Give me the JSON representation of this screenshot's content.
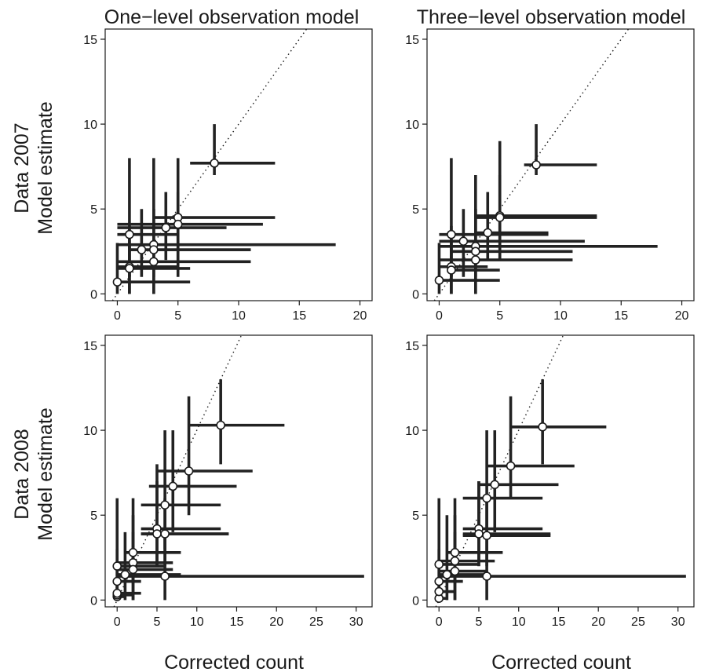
{
  "figure": {
    "column_titles": [
      "One−level observation model",
      "Three−level observation model"
    ],
    "row_labels": [
      {
        "line1": "Data 2007",
        "line2": "Model estimate"
      },
      {
        "line1": "Data 2008",
        "line2": "Model estimate"
      }
    ],
    "x_label": "Corrected count"
  },
  "chart_data": [
    {
      "type": "scatter",
      "panel": "One−level observation model / Data 2007",
      "xlim": [
        -1,
        21
      ],
      "ylim": [
        -0.4,
        15.6
      ],
      "xticks": [
        0,
        5,
        10,
        15,
        20
      ],
      "yticks": [
        0,
        5,
        10,
        15
      ],
      "reference_line": "y = x",
      "points": [
        {
          "x": 0,
          "y": 0.7,
          "xlo": 0,
          "xhi": 6,
          "ylo": 0,
          "yhi": 3
        },
        {
          "x": 1,
          "y": 3.5,
          "xlo": 0,
          "xhi": 5,
          "ylo": 1,
          "yhi": 8
        },
        {
          "x": 1,
          "y": 1.6,
          "xlo": 0,
          "xhi": 5,
          "ylo": 0,
          "yhi": 4
        },
        {
          "x": 1,
          "y": 1.5,
          "xlo": 0,
          "xhi": 6,
          "ylo": 0,
          "yhi": 3
        },
        {
          "x": 2,
          "y": 2.6,
          "xlo": 1,
          "xhi": 11,
          "ylo": 1,
          "yhi": 5
        },
        {
          "x": 3,
          "y": 2.9,
          "xlo": 0,
          "xhi": 18,
          "ylo": 1,
          "yhi": 8
        },
        {
          "x": 3,
          "y": 2.6,
          "xlo": 1,
          "xhi": 11,
          "ylo": 0,
          "yhi": 5
        },
        {
          "x": 3,
          "y": 1.9,
          "xlo": 0,
          "xhi": 11,
          "ylo": 0,
          "yhi": 5
        },
        {
          "x": 4,
          "y": 3.9,
          "xlo": 0,
          "xhi": 9,
          "ylo": 2,
          "yhi": 6
        },
        {
          "x": 5,
          "y": 4.5,
          "xlo": 3,
          "xhi": 13,
          "ylo": 2,
          "yhi": 8
        },
        {
          "x": 5,
          "y": 4.1,
          "xlo": 0,
          "xhi": 12,
          "ylo": 1,
          "yhi": 6
        },
        {
          "x": 8,
          "y": 7.7,
          "xlo": 6,
          "xhi": 13,
          "ylo": 7,
          "yhi": 10
        }
      ]
    },
    {
      "type": "scatter",
      "panel": "Three−level observation model / Data 2007",
      "xlim": [
        -1,
        21
      ],
      "ylim": [
        -0.4,
        15.6
      ],
      "xticks": [
        0,
        5,
        10,
        15,
        20
      ],
      "yticks": [
        0,
        5,
        10,
        15
      ],
      "reference_line": "y = x",
      "points": [
        {
          "x": 0,
          "y": 0.8,
          "xlo": 0,
          "xhi": 5,
          "ylo": 0,
          "yhi": 3
        },
        {
          "x": 1,
          "y": 3.5,
          "xlo": 0,
          "xhi": 9,
          "ylo": 1,
          "yhi": 8
        },
        {
          "x": 1,
          "y": 1.6,
          "xlo": 0,
          "xhi": 4,
          "ylo": 0,
          "yhi": 4
        },
        {
          "x": 1,
          "y": 1.4,
          "xlo": 1,
          "xhi": 5,
          "ylo": 0,
          "yhi": 3
        },
        {
          "x": 2,
          "y": 3.1,
          "xlo": 0,
          "xhi": 12,
          "ylo": 1,
          "yhi": 5
        },
        {
          "x": 3,
          "y": 2.8,
          "xlo": 0,
          "xhi": 18,
          "ylo": 1,
          "yhi": 7
        },
        {
          "x": 3,
          "y": 2.5,
          "xlo": 1,
          "xhi": 11,
          "ylo": 0,
          "yhi": 5
        },
        {
          "x": 3,
          "y": 2.0,
          "xlo": 0,
          "xhi": 11,
          "ylo": 0,
          "yhi": 5
        },
        {
          "x": 4,
          "y": 3.6,
          "xlo": 3,
          "xhi": 9,
          "ylo": 2,
          "yhi": 6
        },
        {
          "x": 5,
          "y": 4.6,
          "xlo": 3,
          "xhi": 13,
          "ylo": 2,
          "yhi": 9
        },
        {
          "x": 5,
          "y": 4.5,
          "xlo": 3,
          "xhi": 13,
          "ylo": 2,
          "yhi": 7
        },
        {
          "x": 8,
          "y": 7.6,
          "xlo": 7,
          "xhi": 13,
          "ylo": 7,
          "yhi": 10
        }
      ]
    },
    {
      "type": "scatter",
      "panel": "One−level observation model / Data 2008",
      "xlim": [
        -1.5,
        32
      ],
      "ylim": [
        -0.4,
        15.6
      ],
      "xticks": [
        0,
        5,
        10,
        15,
        20,
        25,
        30
      ],
      "yticks": [
        0,
        5,
        10,
        15
      ],
      "reference_line": "y = x",
      "points": [
        {
          "x": 0,
          "y": 0.2,
          "xlo": 0,
          "xhi": 1,
          "ylo": 0,
          "yhi": 1
        },
        {
          "x": 0,
          "y": 0.3,
          "xlo": 0,
          "xhi": 2,
          "ylo": 0,
          "yhi": 1
        },
        {
          "x": 0,
          "y": 0.4,
          "xlo": 0,
          "xhi": 3,
          "ylo": 0,
          "yhi": 2
        },
        {
          "x": 0,
          "y": 1.1,
          "xlo": 0,
          "xhi": 3,
          "ylo": 0,
          "yhi": 3
        },
        {
          "x": 0,
          "y": 2.0,
          "xlo": 0,
          "xhi": 6,
          "ylo": 0,
          "yhi": 6
        },
        {
          "x": 1,
          "y": 1.5,
          "xlo": 0,
          "xhi": 8,
          "ylo": 0,
          "yhi": 4
        },
        {
          "x": 2,
          "y": 2.8,
          "xlo": 1,
          "xhi": 8,
          "ylo": 1,
          "yhi": 6
        },
        {
          "x": 2,
          "y": 2.2,
          "xlo": 0,
          "xhi": 7,
          "ylo": 0,
          "yhi": 5
        },
        {
          "x": 2,
          "y": 1.8,
          "xlo": 0,
          "xhi": 7,
          "ylo": 0,
          "yhi": 4
        },
        {
          "x": 5,
          "y": 4.2,
          "xlo": 3,
          "xhi": 13,
          "ylo": 2,
          "yhi": 8
        },
        {
          "x": 5,
          "y": 3.9,
          "xlo": 3,
          "xhi": 14,
          "ylo": 2,
          "yhi": 7
        },
        {
          "x": 6,
          "y": 5.6,
          "xlo": 3,
          "xhi": 13,
          "ylo": 3,
          "yhi": 10
        },
        {
          "x": 6,
          "y": 3.9,
          "xlo": 3,
          "xhi": 14,
          "ylo": 2,
          "yhi": 6
        },
        {
          "x": 6,
          "y": 1.4,
          "xlo": 0,
          "xhi": 31,
          "ylo": 0,
          "yhi": 4
        },
        {
          "x": 7,
          "y": 6.7,
          "xlo": 4,
          "xhi": 15,
          "ylo": 4,
          "yhi": 10
        },
        {
          "x": 9,
          "y": 7.6,
          "xlo": 5,
          "xhi": 17,
          "ylo": 5,
          "yhi": 12
        },
        {
          "x": 13,
          "y": 10.3,
          "xlo": 9,
          "xhi": 21,
          "ylo": 8,
          "yhi": 13
        }
      ]
    },
    {
      "type": "scatter",
      "panel": "Three−level observation model / Data 2008",
      "xlim": [
        -1.5,
        32
      ],
      "ylim": [
        -0.4,
        15.6
      ],
      "xticks": [
        0,
        5,
        10,
        15,
        20,
        25,
        30
      ],
      "yticks": [
        0,
        5,
        10,
        15
      ],
      "reference_line": "y = x",
      "points": [
        {
          "x": 0,
          "y": 0.1,
          "xlo": 0,
          "xhi": 1,
          "ylo": 0,
          "yhi": 1
        },
        {
          "x": 0,
          "y": 0.5,
          "xlo": 0,
          "xhi": 2,
          "ylo": 0,
          "yhi": 1
        },
        {
          "x": 0,
          "y": 1.1,
          "xlo": 0,
          "xhi": 3,
          "ylo": 0,
          "yhi": 3
        },
        {
          "x": 0,
          "y": 2.1,
          "xlo": 0,
          "xhi": 5,
          "ylo": 0,
          "yhi": 6
        },
        {
          "x": 1,
          "y": 1.5,
          "xlo": 0,
          "xhi": 6,
          "ylo": 0,
          "yhi": 5
        },
        {
          "x": 2,
          "y": 2.8,
          "xlo": 1,
          "xhi": 8,
          "ylo": 1,
          "yhi": 6
        },
        {
          "x": 2,
          "y": 2.3,
          "xlo": 0,
          "xhi": 7,
          "ylo": 0,
          "yhi": 5
        },
        {
          "x": 2,
          "y": 1.7,
          "xlo": 0,
          "xhi": 6,
          "ylo": 0,
          "yhi": 4
        },
        {
          "x": 5,
          "y": 4.2,
          "xlo": 3,
          "xhi": 13,
          "ylo": 2,
          "yhi": 7
        },
        {
          "x": 5,
          "y": 3.9,
          "xlo": 3,
          "xhi": 14,
          "ylo": 2,
          "yhi": 7
        },
        {
          "x": 6,
          "y": 6.0,
          "xlo": 3,
          "xhi": 13,
          "ylo": 3,
          "yhi": 10
        },
        {
          "x": 6,
          "y": 3.8,
          "xlo": 3,
          "xhi": 14,
          "ylo": 2,
          "yhi": 6
        },
        {
          "x": 6,
          "y": 1.4,
          "xlo": 0,
          "xhi": 31,
          "ylo": 0,
          "yhi": 3
        },
        {
          "x": 7,
          "y": 6.8,
          "xlo": 5,
          "xhi": 15,
          "ylo": 4,
          "yhi": 10
        },
        {
          "x": 9,
          "y": 7.9,
          "xlo": 6,
          "xhi": 17,
          "ylo": 6,
          "yhi": 12
        },
        {
          "x": 13,
          "y": 10.2,
          "xlo": 9,
          "xhi": 21,
          "ylo": 8,
          "yhi": 13
        }
      ]
    }
  ]
}
